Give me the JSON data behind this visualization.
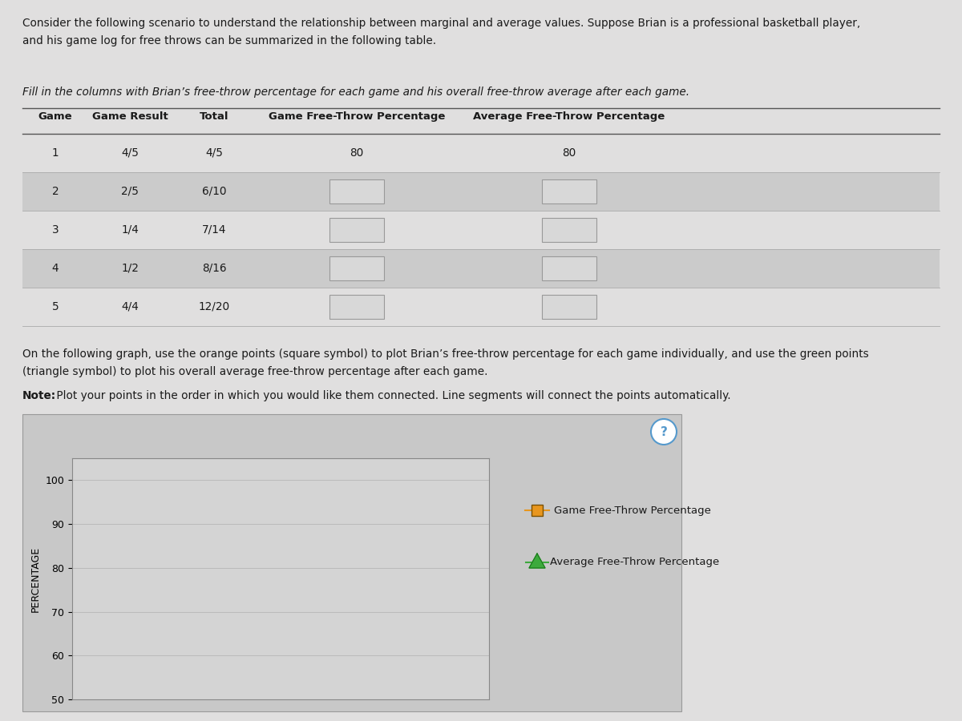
{
  "intro_text_line1": "Consider the following scenario to understand the relationship between marginal and average values. Suppose Brian is a professional basketball player,",
  "intro_text_line2": "and his game log for free throws can be summarized in the following table.",
  "fill_in_text": "Fill in the columns with Brian’s free-throw percentage for each game and his overall free-throw average after each game.",
  "table_headers": [
    "Game",
    "Game Result",
    "Total",
    "Game Free-Throw Percentage",
    "Average Free-Throw Percentage"
  ],
  "table_rows": [
    [
      "1",
      "4/5",
      "4/5",
      "80",
      "80"
    ],
    [
      "2",
      "2/5",
      "6/10",
      "",
      ""
    ],
    [
      "3",
      "1/4",
      "7/14",
      "",
      ""
    ],
    [
      "4",
      "1/2",
      "8/16",
      "",
      ""
    ],
    [
      "5",
      "4/4",
      "12/20",
      "",
      ""
    ]
  ],
  "graph_instruction_line1": "On the following graph, use the orange points (square symbol) to plot Brian’s free-throw percentage for each game individually, and use the green points",
  "graph_instruction_line2": "(triangle symbol) to plot his overall average free-throw percentage after each game.",
  "note_bold": "Note:",
  "note_text": " Plot your points in the order in which you would like them connected. Line segments will connect the points automatically.",
  "ylabel": "PERCENTAGE",
  "ylim": [
    50,
    105
  ],
  "yticks": [
    50,
    60,
    70,
    80,
    90,
    100
  ],
  "xlim": [
    0,
    6
  ],
  "legend_label_orange": "Game Free-Throw Percentage",
  "legend_label_green": "Average Free-Throw Percentage",
  "orange_color": "#E8961E",
  "green_color": "#3DAA3D",
  "page_bg": "#CBCBCB",
  "content_bg": "#E0DFDF",
  "table_odd_bg": "#CBCBCB",
  "table_even_bg": "#DEDEDE",
  "grid_color": "#BBBBBB",
  "text_color": "#1a1a1a",
  "input_box_color": "#D8D8D8",
  "input_box_edge": "#999999",
  "graph_outer_bg": "#C8C8C8",
  "graph_plot_bg": "#D4D4D4"
}
